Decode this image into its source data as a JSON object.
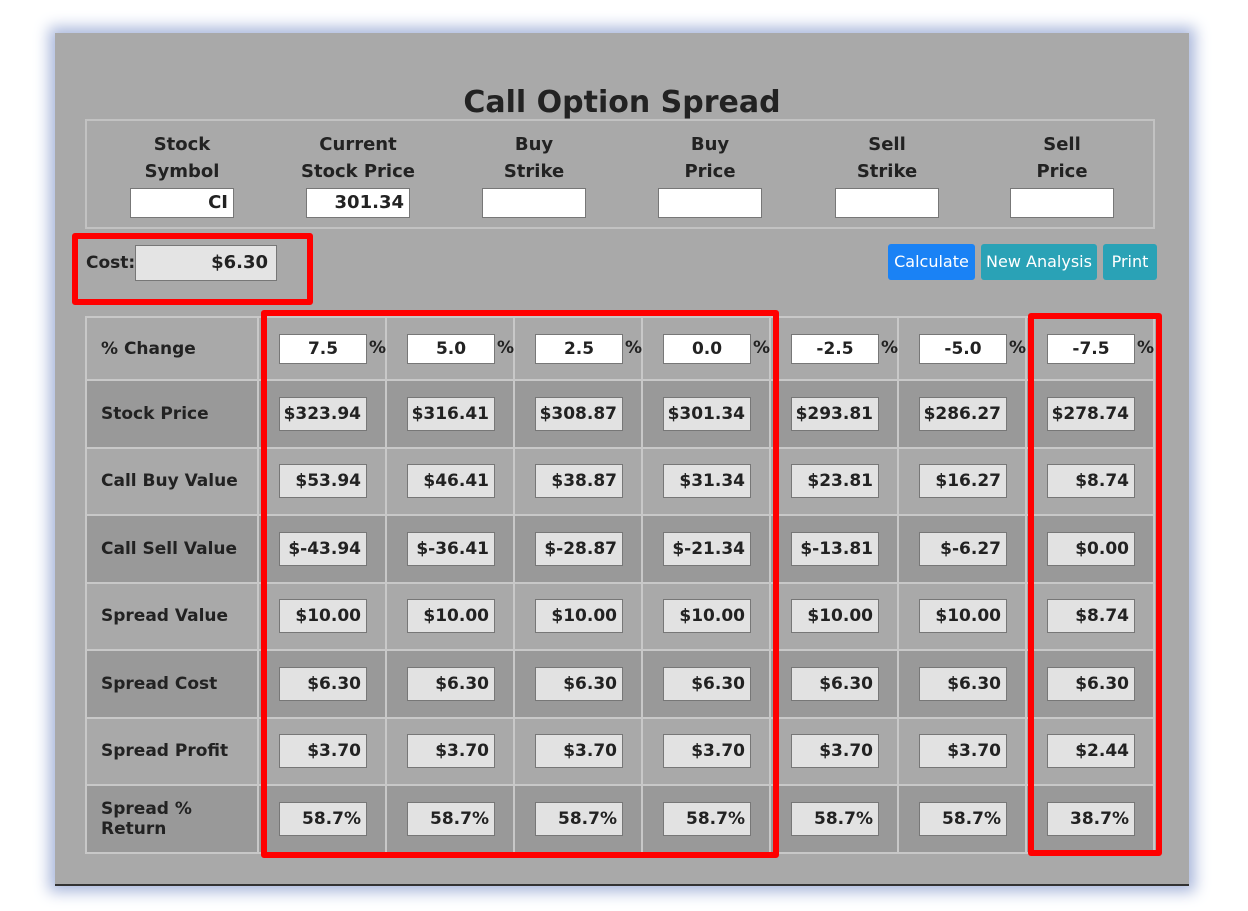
{
  "title": "Call Option Spread",
  "inputs": [
    {
      "line1": "Stock",
      "line2": "Symbol",
      "value": "CI"
    },
    {
      "line1": "Current",
      "line2": "Stock Price",
      "value": "301.34"
    },
    {
      "line1": "Buy",
      "line2": "Strike",
      "value": ""
    },
    {
      "line1": "Buy",
      "line2": "Price",
      "value": ""
    },
    {
      "line1": "Sell",
      "line2": "Strike",
      "value": ""
    },
    {
      "line1": "Sell",
      "line2": "Price",
      "value": ""
    }
  ],
  "cost": {
    "label": "Cost:",
    "value": "$6.30"
  },
  "buttons": {
    "calculate": "Calculate",
    "new_analysis": "New Analysis",
    "print": "Print"
  },
  "colors": {
    "calculate": "#1a82f5",
    "secondary": "#2aa2b6",
    "highlight": "#ff0000",
    "panel": "#a9a9a9"
  },
  "table": {
    "pct_label": "% Change",
    "pct_sign": "%",
    "pct_values": [
      "7.5",
      "5.0",
      "2.5",
      "0.0",
      "-2.5",
      "-5.0",
      "-7.5"
    ],
    "rows": [
      {
        "label": "Stock Price",
        "values": [
          "$323.94",
          "$316.41",
          "$308.87",
          "$301.34",
          "$293.81",
          "$286.27",
          "$278.74"
        ]
      },
      {
        "label": "Call Buy Value",
        "values": [
          "$53.94",
          "$46.41",
          "$38.87",
          "$31.34",
          "$23.81",
          "$16.27",
          "$8.74"
        ]
      },
      {
        "label": "Call Sell Value",
        "values": [
          "$-43.94",
          "$-36.41",
          "$-28.87",
          "$-21.34",
          "$-13.81",
          "$-6.27",
          "$0.00"
        ]
      },
      {
        "label": "Spread Value",
        "values": [
          "$10.00",
          "$10.00",
          "$10.00",
          "$10.00",
          "$10.00",
          "$10.00",
          "$8.74"
        ]
      },
      {
        "label": "Spread Cost",
        "values": [
          "$6.30",
          "$6.30",
          "$6.30",
          "$6.30",
          "$6.30",
          "$6.30",
          "$6.30"
        ]
      },
      {
        "label": "Spread Profit",
        "values": [
          "$3.70",
          "$3.70",
          "$3.70",
          "$3.70",
          "$3.70",
          "$3.70",
          "$2.44"
        ]
      },
      {
        "label": "Spread % Return",
        "values": [
          "58.7%",
          "58.7%",
          "58.7%",
          "58.7%",
          "58.7%",
          "58.7%",
          "38.7%"
        ]
      }
    ]
  }
}
